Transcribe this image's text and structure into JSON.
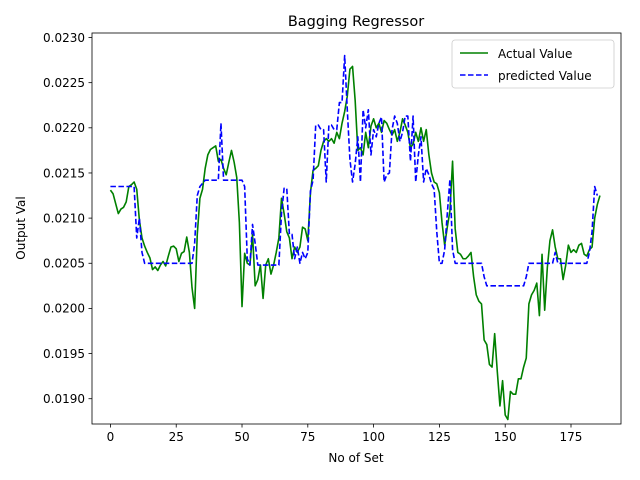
{
  "chart_data": {
    "type": "line",
    "title": "Bagging Regressor",
    "xlabel": "No of Set",
    "ylabel": "Output Val",
    "xlim": [
      -7,
      194
    ],
    "ylim": [
      0.01872,
      0.02305
    ],
    "xticks": [
      0,
      25,
      50,
      75,
      100,
      125,
      150,
      175
    ],
    "yticks": [
      0.019,
      0.0195,
      0.02,
      0.0205,
      0.021,
      0.0215,
      0.022,
      0.0225,
      0.023
    ],
    "xtick_labels": [
      "0",
      "25",
      "50",
      "75",
      "100",
      "125",
      "150",
      "175"
    ],
    "ytick_labels": [
      "0.0190",
      "0.0195",
      "0.0200",
      "0.0205",
      "0.0210",
      "0.0215",
      "0.0220",
      "0.0225",
      "0.0230"
    ],
    "grid": false,
    "legend_position": "top-right",
    "series": [
      {
        "name": "Actual Value",
        "color": "#008000",
        "style": "solid",
        "points": [
          [
            0,
            0.02131
          ],
          [
            1,
            0.02127
          ],
          [
            2,
            0.02116
          ],
          [
            3,
            0.02105
          ],
          [
            4,
            0.0211
          ],
          [
            5,
            0.02112
          ],
          [
            6,
            0.02118
          ],
          [
            7,
            0.02135
          ],
          [
            8,
            0.02137
          ],
          [
            9,
            0.0214
          ],
          [
            10,
            0.02132
          ],
          [
            11,
            0.02098
          ],
          [
            12,
            0.02078
          ],
          [
            13,
            0.02069
          ],
          [
            14,
            0.02062
          ],
          [
            15,
            0.02056
          ],
          [
            16,
            0.02043
          ],
          [
            17,
            0.02046
          ],
          [
            18,
            0.02042
          ],
          [
            19,
            0.02048
          ],
          [
            20,
            0.02052
          ],
          [
            21,
            0.02047
          ],
          [
            22,
            0.02058
          ],
          [
            23,
            0.02068
          ],
          [
            24,
            0.02069
          ],
          [
            25,
            0.02066
          ],
          [
            26,
            0.02052
          ],
          [
            27,
            0.02061
          ],
          [
            28,
            0.02063
          ],
          [
            29,
            0.02079
          ],
          [
            30,
            0.02062
          ],
          [
            31,
            0.02023
          ],
          [
            32,
            0.02
          ],
          [
            33,
            0.02082
          ],
          [
            34,
            0.02122
          ],
          [
            35,
            0.02132
          ],
          [
            36,
            0.02155
          ],
          [
            37,
            0.0217
          ],
          [
            38,
            0.02176
          ],
          [
            39,
            0.02178
          ],
          [
            40,
            0.0218
          ],
          [
            41,
            0.02163
          ],
          [
            42,
            0.02165
          ],
          [
            43,
            0.02155
          ],
          [
            44,
            0.02148
          ],
          [
            45,
            0.02162
          ],
          [
            46,
            0.02175
          ],
          [
            47,
            0.02162
          ],
          [
            48,
            0.02145
          ],
          [
            49,
            0.02095
          ],
          [
            50,
            0.02002
          ],
          [
            51,
            0.02061
          ],
          [
            52,
            0.0205
          ],
          [
            53,
            0.02048
          ],
          [
            54,
            0.02082
          ],
          [
            55,
            0.02025
          ],
          [
            56,
            0.02032
          ],
          [
            57,
            0.02048
          ],
          [
            58,
            0.02011
          ],
          [
            59,
            0.02048
          ],
          [
            60,
            0.02055
          ],
          [
            61,
            0.02038
          ],
          [
            62,
            0.02048
          ],
          [
            63,
            0.02062
          ],
          [
            64,
            0.02078
          ],
          [
            65,
            0.02122
          ],
          [
            66,
            0.02105
          ],
          [
            67,
            0.02085
          ],
          [
            68,
            0.02078
          ],
          [
            69,
            0.02055
          ],
          [
            70,
            0.02068
          ],
          [
            71,
            0.02062
          ],
          [
            72,
            0.02068
          ],
          [
            73,
            0.0209
          ],
          [
            74,
            0.02088
          ],
          [
            75,
            0.02075
          ],
          [
            76,
            0.02128
          ],
          [
            77,
            0.02153
          ],
          [
            78,
            0.02155
          ],
          [
            79,
            0.02158
          ],
          [
            80,
            0.02175
          ],
          [
            81,
            0.02185
          ],
          [
            82,
            0.02188
          ],
          [
            83,
            0.02185
          ],
          [
            84,
            0.02188
          ],
          [
            85,
            0.02183
          ],
          [
            86,
            0.02195
          ],
          [
            87,
            0.02188
          ],
          [
            88,
            0.02205
          ],
          [
            89,
            0.02218
          ],
          [
            90,
            0.02235
          ],
          [
            91,
            0.02265
          ],
          [
            92,
            0.02268
          ],
          [
            93,
            0.0223
          ],
          [
            94,
            0.02175
          ],
          [
            95,
            0.02178
          ],
          [
            96,
            0.0217
          ],
          [
            97,
            0.02195
          ],
          [
            98,
            0.02178
          ],
          [
            99,
            0.02202
          ],
          [
            100,
            0.0221
          ],
          [
            101,
            0.022
          ],
          [
            102,
            0.02205
          ],
          [
            103,
            0.02195
          ],
          [
            104,
            0.02208
          ],
          [
            105,
            0.02205
          ],
          [
            106,
            0.02198
          ],
          [
            107,
            0.02192
          ],
          [
            108,
            0.02198
          ],
          [
            109,
            0.02185
          ],
          [
            110,
            0.02195
          ],
          [
            111,
            0.0221
          ],
          [
            112,
            0.02203
          ],
          [
            113,
            0.02195
          ],
          [
            114,
            0.02178
          ],
          [
            115,
            0.02182
          ],
          [
            116,
            0.02195
          ],
          [
            117,
            0.02185
          ],
          [
            118,
            0.022
          ],
          [
            119,
            0.02185
          ],
          [
            120,
            0.02198
          ],
          [
            121,
            0.0217
          ],
          [
            122,
            0.0215
          ],
          [
            123,
            0.0214
          ],
          [
            124,
            0.02138
          ],
          [
            125,
            0.02128
          ],
          [
            126,
            0.02095
          ],
          [
            127,
            0.0207
          ],
          [
            128,
            0.0209
          ],
          [
            129,
            0.02108
          ],
          [
            130,
            0.02163
          ],
          [
            131,
            0.02088
          ],
          [
            132,
            0.02062
          ],
          [
            133,
            0.0206
          ],
          [
            134,
            0.02055
          ],
          [
            135,
            0.02055
          ],
          [
            136,
            0.02058
          ],
          [
            137,
            0.02062
          ],
          [
            138,
            0.02035
          ],
          [
            139,
            0.02015
          ],
          [
            140,
            0.02008
          ],
          [
            141,
            0.02005
          ],
          [
            142,
            0.01965
          ],
          [
            143,
            0.0196
          ],
          [
            144,
            0.01938
          ],
          [
            145,
            0.01935
          ],
          [
            146,
            0.01972
          ],
          [
            147,
            0.0193
          ],
          [
            148,
            0.01892
          ],
          [
            149,
            0.0192
          ],
          [
            150,
            0.01882
          ],
          [
            151,
            0.01877
          ],
          [
            152,
            0.01908
          ],
          [
            153,
            0.01905
          ],
          [
            154,
            0.01905
          ],
          [
            155,
            0.01922
          ],
          [
            156,
            0.01922
          ],
          [
            157,
            0.01935
          ],
          [
            158,
            0.01945
          ],
          [
            159,
            0.02005
          ],
          [
            160,
            0.02015
          ],
          [
            161,
            0.0202
          ],
          [
            162,
            0.02028
          ],
          [
            163,
            0.01992
          ],
          [
            164,
            0.0206
          ],
          [
            165,
            0.01998
          ],
          [
            166,
            0.02045
          ],
          [
            167,
            0.02075
          ],
          [
            168,
            0.02087
          ],
          [
            169,
            0.02068
          ],
          [
            170,
            0.02055
          ],
          [
            171,
            0.02055
          ],
          [
            172,
            0.02032
          ],
          [
            173,
            0.02048
          ],
          [
            174,
            0.0207
          ],
          [
            175,
            0.02062
          ],
          [
            176,
            0.02065
          ],
          [
            177,
            0.02062
          ],
          [
            178,
            0.0207
          ],
          [
            179,
            0.02072
          ],
          [
            180,
            0.0206
          ],
          [
            181,
            0.02058
          ],
          [
            182,
            0.02065
          ],
          [
            183,
            0.02068
          ],
          [
            184,
            0.021
          ],
          [
            185,
            0.02115
          ],
          [
            186,
            0.02125
          ]
        ]
      },
      {
        "name": "predicted Value",
        "color": "#0000ff",
        "style": "dashed",
        "points": [
          [
            0,
            0.02135
          ],
          [
            9,
            0.02135
          ],
          [
            10,
            0.02078
          ],
          [
            11,
            0.021
          ],
          [
            12,
            0.02062
          ],
          [
            13,
            0.0205
          ],
          [
            31,
            0.0205
          ],
          [
            32,
            0.02072
          ],
          [
            33,
            0.02125
          ],
          [
            34,
            0.02135
          ],
          [
            36,
            0.02142
          ],
          [
            41,
            0.02142
          ],
          [
            42,
            0.02205
          ],
          [
            43,
            0.02142
          ],
          [
            50,
            0.02142
          ],
          [
            51,
            0.02135
          ],
          [
            52,
            0.02055
          ],
          [
            53,
            0.02048
          ],
          [
            54,
            0.02093
          ],
          [
            55,
            0.02072
          ],
          [
            56,
            0.02048
          ],
          [
            64,
            0.02048
          ],
          [
            65,
            0.02105
          ],
          [
            66,
            0.02133
          ],
          [
            67,
            0.02133
          ],
          [
            68,
            0.02082
          ],
          [
            69,
            0.02082
          ],
          [
            70,
            0.02055
          ],
          [
            71,
            0.02068
          ],
          [
            72,
            0.0205
          ],
          [
            73,
            0.02062
          ],
          [
            74,
            0.02055
          ],
          [
            75,
            0.02062
          ],
          [
            76,
            0.0213
          ],
          [
            77,
            0.02142
          ],
          [
            78,
            0.02203
          ],
          [
            79,
            0.02203
          ],
          [
            80,
            0.02198
          ],
          [
            81,
            0.02198
          ],
          [
            82,
            0.0214
          ],
          [
            83,
            0.02203
          ],
          [
            84,
            0.02203
          ],
          [
            85,
            0.02198
          ],
          [
            86,
            0.02198
          ],
          [
            87,
            0.02228
          ],
          [
            88,
            0.02228
          ],
          [
            89,
            0.0228
          ],
          [
            90,
            0.0222
          ],
          [
            91,
            0.02165
          ],
          [
            92,
            0.0214
          ],
          [
            93,
            0.0216
          ],
          [
            94,
            0.0219
          ],
          [
            95,
            0.0214
          ],
          [
            96,
            0.0222
          ],
          [
            97,
            0.022
          ],
          [
            98,
            0.0222
          ],
          [
            99,
            0.0217
          ],
          [
            100,
            0.02198
          ],
          [
            101,
            0.0219
          ],
          [
            102,
            0.02205
          ],
          [
            103,
            0.02212
          ],
          [
            104,
            0.0214
          ],
          [
            105,
            0.02148
          ],
          [
            106,
            0.0215
          ],
          [
            107,
            0.02198
          ],
          [
            108,
            0.02213
          ],
          [
            109,
            0.02205
          ],
          [
            110,
            0.02185
          ],
          [
            111,
            0.02195
          ],
          [
            112,
            0.02213
          ],
          [
            113,
            0.02213
          ],
          [
            114,
            0.02163
          ],
          [
            115,
            0.02213
          ],
          [
            116,
            0.0214
          ],
          [
            117,
            0.0217
          ],
          [
            118,
            0.0219
          ],
          [
            119,
            0.0214
          ],
          [
            120,
            0.02155
          ],
          [
            121,
            0.02148
          ],
          [
            122,
            0.02138
          ],
          [
            123,
            0.02132
          ],
          [
            124,
            0.02085
          ],
          [
            125,
            0.0205
          ],
          [
            126,
            0.0205
          ],
          [
            127,
            0.02065
          ],
          [
            128,
            0.02105
          ],
          [
            129,
            0.02143
          ],
          [
            130,
            0.02065
          ],
          [
            131,
            0.0205
          ],
          [
            141,
            0.0205
          ],
          [
            142,
            0.02035
          ],
          [
            143,
            0.02025
          ],
          [
            157,
            0.02025
          ],
          [
            158,
            0.02035
          ],
          [
            159,
            0.0205
          ],
          [
            168,
            0.0205
          ],
          [
            169,
            0.02062
          ],
          [
            170,
            0.0205
          ],
          [
            181,
            0.0205
          ],
          [
            182,
            0.02062
          ],
          [
            183,
            0.02085
          ],
          [
            184,
            0.02135
          ],
          [
            185,
            0.02125
          ]
        ]
      }
    ]
  }
}
